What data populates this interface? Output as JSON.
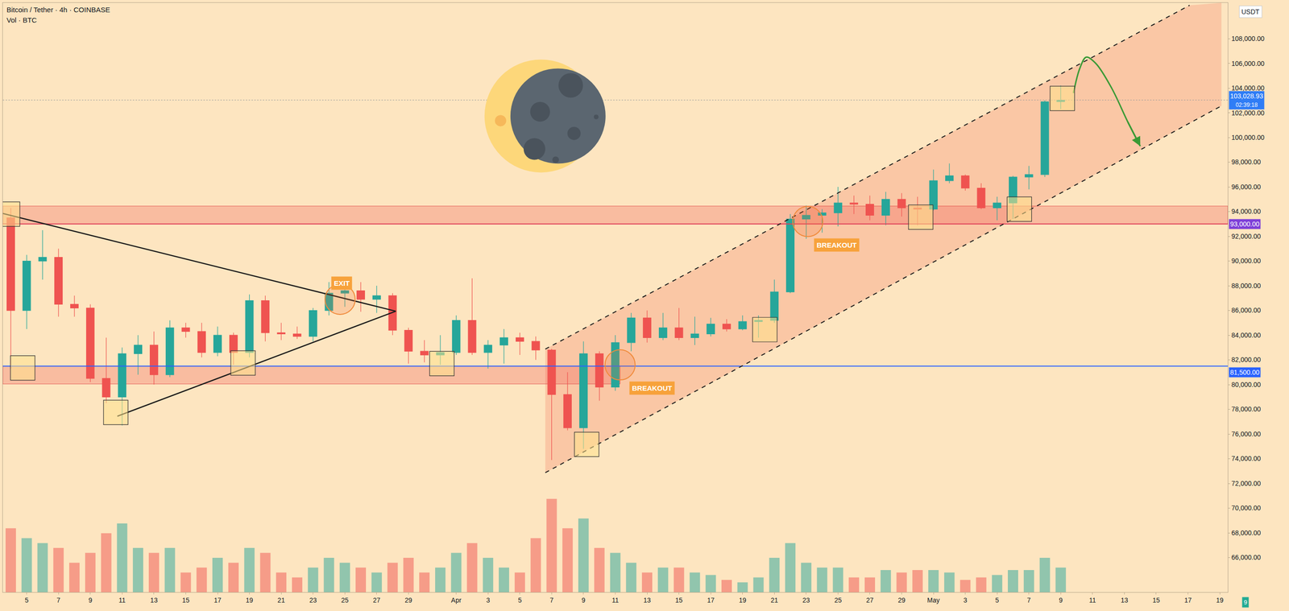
{
  "chart_data": {
    "type": "candlestick",
    "title": "Bitcoin / Tether · 4h · COINBASE",
    "subtitle": "Vol · BTC",
    "ylabel": "USDT",
    "badge": "9",
    "categories": [
      null,
      "5",
      null,
      "7",
      null,
      "9",
      null,
      "11",
      null,
      "13",
      null,
      "15",
      null,
      "17",
      null,
      "19",
      null,
      "21",
      null,
      "23",
      null,
      "25",
      null,
      "27",
      null,
      "29",
      null,
      null,
      "Apr",
      null,
      "3",
      null,
      "5",
      null,
      "7",
      null,
      "9",
      null,
      "11",
      null,
      "13",
      null,
      "15",
      null,
      "17",
      null,
      "19",
      null,
      "21",
      null,
      "23",
      null,
      "25",
      null,
      "27",
      null,
      "29",
      null,
      "May",
      null,
      "3",
      null,
      "5",
      null,
      "7",
      null,
      "9",
      null,
      "11",
      null,
      "13",
      null,
      "15",
      null,
      "17",
      null,
      "19"
    ],
    "open": [
      93500,
      86000,
      90000,
      90300,
      86500,
      86200,
      80500,
      79000,
      82500,
      83200,
      80800,
      84600,
      84300,
      82600,
      84000,
      82600,
      86800,
      84200,
      84100,
      83900,
      86000,
      87400,
      87600,
      86900,
      87200,
      84400,
      82700,
      82400,
      82600,
      85200,
      82600,
      83200,
      83800,
      83500,
      82800,
      79200,
      76500,
      82500,
      79800,
      83400,
      85400,
      83800,
      84600,
      83800,
      84100,
      84900,
      84500,
      85100,
      85200,
      87500,
      93400,
      93700,
      93900,
      94700,
      94600,
      93700,
      95000,
      94300,
      94200,
      96500,
      96900,
      95900,
      94300,
      94700,
      96800,
      97000,
      102900,
      null,
      null,
      null,
      null,
      null,
      null,
      null,
      null,
      null,
      null
    ],
    "high": [
      94300,
      90500,
      92500,
      91000,
      87200,
      86500,
      83800,
      83000,
      84000,
      84300,
      85200,
      85000,
      85000,
      84700,
      84200,
      87300,
      87200,
      85000,
      84700,
      86200,
      88300,
      88700,
      88300,
      88000,
      87400,
      84600,
      83600,
      84000,
      85600,
      88600,
      83600,
      84500,
      84200,
      83900,
      82900,
      81000,
      83500,
      82700,
      84000,
      85800,
      86000,
      85800,
      86200,
      85500,
      85400,
      85300,
      85600,
      85600,
      88500,
      93800,
      94500,
      94200,
      96000,
      95300,
      95300,
      95600,
      95500,
      95200,
      97400,
      97900,
      97000,
      96300,
      95200,
      96900,
      97700,
      103000,
      104200,
      null,
      null,
      null,
      null,
      null,
      null,
      null,
      null,
      null,
      null
    ],
    "low": [
      81300,
      84500,
      88500,
      85500,
      85500,
      80200,
      78500,
      76700,
      80800,
      80000,
      80600,
      83800,
      82200,
      82300,
      81600,
      82200,
      83500,
      83600,
      83700,
      83500,
      85600,
      86300,
      85900,
      85800,
      84000,
      81700,
      81800,
      81600,
      82400,
      82400,
      81300,
      81700,
      82400,
      82000,
      73900,
      76300,
      74800,
      78700,
      79500,
      82700,
      83400,
      83600,
      83600,
      83200,
      83900,
      84300,
      84400,
      83800,
      85000,
      87400,
      91800,
      92300,
      92800,
      93800,
      93300,
      92900,
      93600,
      92900,
      94100,
      96300,
      95700,
      94200,
      93300,
      93400,
      95800,
      96800,
      102300,
      null,
      null,
      null,
      null,
      null,
      null,
      null,
      null,
      null,
      null
    ],
    "close": [
      86000,
      90000,
      90300,
      86500,
      86200,
      80500,
      79000,
      82500,
      83200,
      80800,
      84600,
      84300,
      82600,
      84000,
      82600,
      86800,
      84200,
      84100,
      83900,
      86000,
      87400,
      87600,
      86900,
      87200,
      84400,
      82700,
      82400,
      82600,
      85200,
      82600,
      83200,
      83800,
      83500,
      82800,
      79200,
      76500,
      82500,
      79800,
      83400,
      85400,
      83800,
      84600,
      83800,
      84100,
      84900,
      84500,
      85100,
      85200,
      87500,
      93400,
      93700,
      93900,
      94700,
      94600,
      93700,
      95000,
      94300,
      94200,
      96500,
      96900,
      95900,
      94300,
      94700,
      96800,
      97000,
      102900,
      103028.93,
      null,
      null,
      null,
      null,
      null,
      null,
      null,
      null,
      null,
      null
    ],
    "volume": {
      "axis": "y2",
      "values": [
        1300,
        1100,
        1000,
        900,
        600,
        800,
        1200,
        1400,
        900,
        800,
        900,
        400,
        500,
        700,
        600,
        900,
        800,
        400,
        300,
        500,
        700,
        600,
        500,
        400,
        600,
        700,
        400,
        500,
        800,
        1000,
        700,
        500,
        400,
        1100,
        1900,
        1300,
        1500,
        900,
        800,
        600,
        400,
        500,
        500,
        400,
        350,
        250,
        200,
        300,
        700,
        1000,
        600,
        500,
        500,
        300,
        300,
        450,
        400,
        450,
        450,
        400,
        250,
        300,
        350,
        450,
        450,
        700,
        500,
        null,
        null,
        null,
        null,
        null,
        null,
        null,
        null,
        null,
        null
      ]
    },
    "xlim": [
      -0.5,
      76.5
    ],
    "ylim": [
      63200,
      110900
    ],
    "yticks": [
      {
        "value": 66000,
        "label": "66,000.00"
      },
      {
        "value": 68000,
        "label": "68,000.00"
      },
      {
        "value": 70000,
        "label": "70,000.00"
      },
      {
        "value": 72000,
        "label": "72,000.00"
      },
      {
        "value": 74000,
        "label": "74,000.00"
      },
      {
        "value": 76000,
        "label": "76,000.00"
      },
      {
        "value": 78000,
        "label": "78,000.00"
      },
      {
        "value": 80000,
        "label": "80,000.00"
      },
      {
        "value": 82000,
        "label": "82,000.00"
      },
      {
        "value": 84000,
        "label": "84,000.00"
      },
      {
        "value": 86000,
        "label": "86,000.00"
      },
      {
        "value": 88000,
        "label": "88,000.00"
      },
      {
        "value": 90000,
        "label": "90,000.00"
      },
      {
        "value": 92000,
        "label": "92,000.00"
      },
      {
        "value": 94000,
        "label": "94,000.00"
      },
      {
        "value": 96000,
        "label": "96,000.00"
      },
      {
        "value": 98000,
        "label": "98,000.00"
      },
      {
        "value": 100000,
        "label": "100,000.00"
      },
      {
        "value": 102000,
        "label": "102,000.00"
      },
      {
        "value": 104000,
        "label": "104,000.00"
      },
      {
        "value": 106000,
        "label": "106,000.00"
      },
      {
        "value": 108000,
        "label": "108,000.00"
      }
    ],
    "y2lim": [
      0,
      12000
    ],
    "grid": false,
    "zones": [
      {
        "x": [
          -0.5,
          76.5
        ],
        "y": [
          93000,
          94450
        ]
      },
      {
        "x": [
          -0.5,
          38.3
        ],
        "y": [
          80050,
          81500
        ]
      }
    ],
    "trend_lines": [
      {
        "x": [
          -0.5,
          24.2
        ],
        "y": [
          93850,
          85940
        ],
        "line_style": "solid"
      },
      {
        "x": [
          6.7,
          24.2
        ],
        "y": [
          77440,
          85940
        ],
        "line_style": "solid"
      }
    ],
    "channel": [
      {
        "x": [
          33.6,
          76.1
        ],
        "y": [
          72870,
          102560
        ],
        "line_style": "dashed"
      },
      {
        "x": [
          33.6,
          74.1
        ],
        "y": [
          82870,
          110700
        ],
        "line_style": "dashed"
      }
    ],
    "levels": [
      {
        "value": 93000,
        "color": "#e0405a",
        "line_style": "solid"
      },
      {
        "value": 81500,
        "color": "#2962ff",
        "line_style": "solid"
      },
      {
        "value": 103028.93,
        "color": "#9a9a9a",
        "line_style": "dotted"
      }
    ],
    "price_labels": [
      {
        "value": 103028.93,
        "label": "103,028.93",
        "sublabel": "02:39:18",
        "color": "#2f7df6"
      },
      {
        "value": 93000,
        "label": "93,000.00",
        "color": "#7e3fd8"
      },
      {
        "value": 81500,
        "label": "81,500.00",
        "color": "#2962ff"
      }
    ],
    "boxes": [
      {
        "x": -0.2,
        "y": 93800
      },
      {
        "x": 0.75,
        "y": 81350
      },
      {
        "x": 6.6,
        "y": 77750
      },
      {
        "x": 14.6,
        "y": 81750
      },
      {
        "x": 27.1,
        "y": 81700
      },
      {
        "x": 36.2,
        "y": 75160
      },
      {
        "x": 47.4,
        "y": 84450
      },
      {
        "x": 57.2,
        "y": 93550
      },
      {
        "x": 63.4,
        "y": 94200
      },
      {
        "x": 66.1,
        "y": 103160
      }
    ],
    "circles": [
      {
        "x": 20.7,
        "y": 86900
      },
      {
        "x": 38.3,
        "y": 81600
      },
      {
        "x": 50.1,
        "y": 93200
      }
    ],
    "annotations": [
      {
        "text": "EXIT",
        "x": 20.8,
        "y": 88200
      },
      {
        "text": "BREAKOUT",
        "x": 40.3,
        "y": 79700
      },
      {
        "text": "BREAKOUT",
        "x": 51.9,
        "y": 91300
      }
    ],
    "projection": {
      "color": "#3a9a35",
      "x": [
        66.8,
        67.2,
        67.6,
        68.2,
        69.2,
        70.2,
        71.0
      ],
      "y": [
        103600,
        105600,
        106500,
        106000,
        104000,
        101300,
        99300
      ]
    }
  }
}
